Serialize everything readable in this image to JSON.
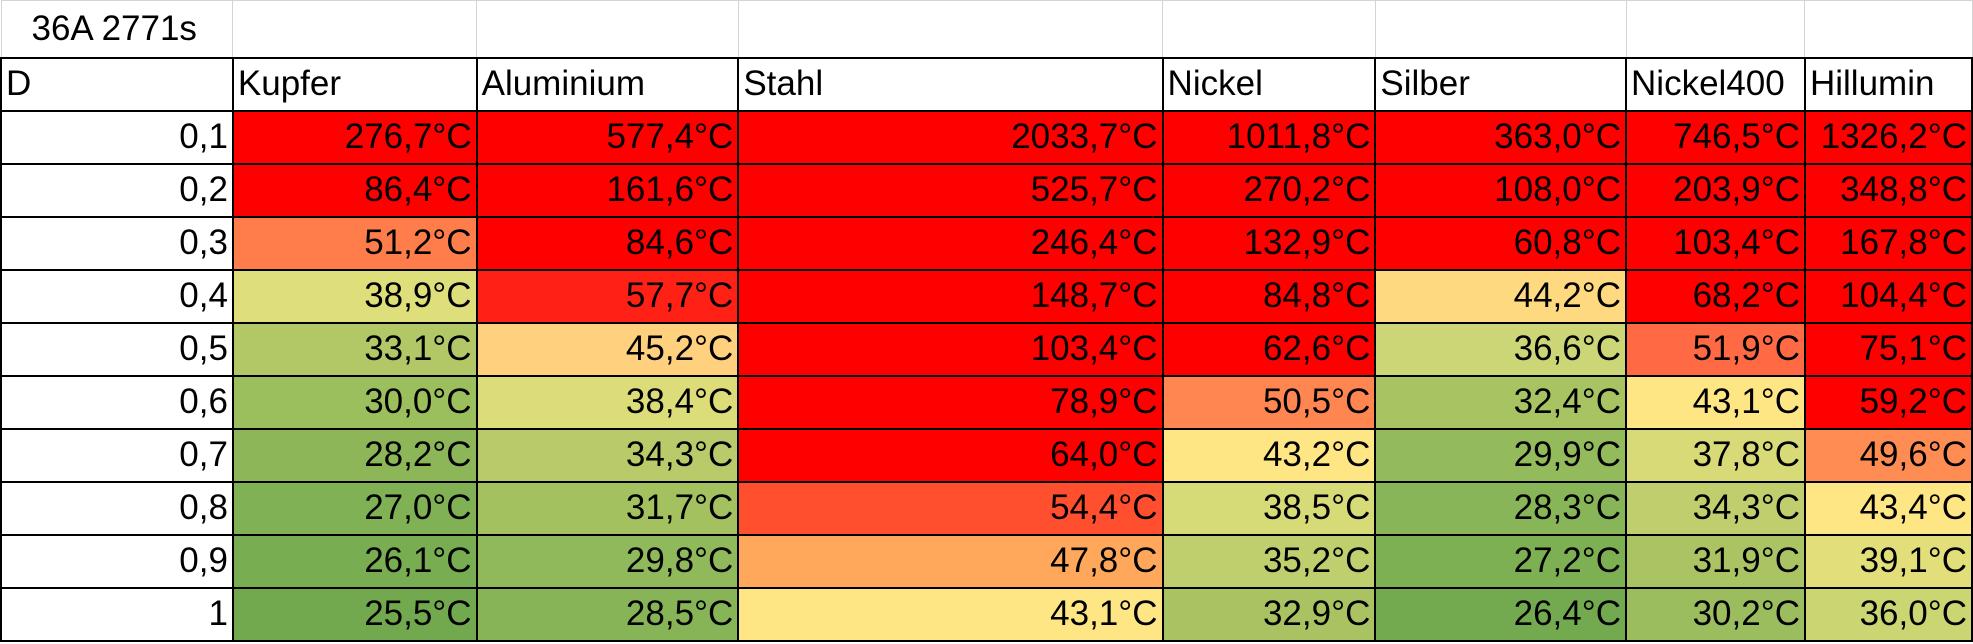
{
  "title": "36A 2771s",
  "headers": [
    "D",
    "Kupfer",
    "Aluminium",
    "Stahl",
    "Nickel",
    "Silber",
    "Nickel400",
    "Hillumin"
  ],
  "rows": [
    {
      "d": "0,1",
      "cells": [
        {
          "text": "276,7°C",
          "color": "#ff0000"
        },
        {
          "text": "577,4°C",
          "color": "#ff0000"
        },
        {
          "text": "2033,7°C",
          "color": "#ff0000"
        },
        {
          "text": "1011,8°C",
          "color": "#ff0000"
        },
        {
          "text": "363,0°C",
          "color": "#ff0000"
        },
        {
          "text": "746,5°C",
          "color": "#ff0000"
        },
        {
          "text": "1326,2°C",
          "color": "#ff0000"
        }
      ]
    },
    {
      "d": "0,2",
      "cells": [
        {
          "text": "86,4°C",
          "color": "#ff0000"
        },
        {
          "text": "161,6°C",
          "color": "#ff0000"
        },
        {
          "text": "525,7°C",
          "color": "#ff0000"
        },
        {
          "text": "270,2°C",
          "color": "#ff0000"
        },
        {
          "text": "108,0°C",
          "color": "#ff0000"
        },
        {
          "text": "203,9°C",
          "color": "#ff0000"
        },
        {
          "text": "348,8°C",
          "color": "#ff0000"
        }
      ]
    },
    {
      "d": "0,3",
      "cells": [
        {
          "text": "51,2°C",
          "color": "#ff7c4b"
        },
        {
          "text": "84,6°C",
          "color": "#ff0000"
        },
        {
          "text": "246,4°C",
          "color": "#ff0000"
        },
        {
          "text": "132,9°C",
          "color": "#ff0000"
        },
        {
          "text": "60,8°C",
          "color": "#ff0000"
        },
        {
          "text": "103,4°C",
          "color": "#ff0000"
        },
        {
          "text": "167,8°C",
          "color": "#ff0000"
        }
      ]
    },
    {
      "d": "0,4",
      "cells": [
        {
          "text": "38,9°C",
          "color": "#dedf7a"
        },
        {
          "text": "57,7°C",
          "color": "#ff2116"
        },
        {
          "text": "148,7°C",
          "color": "#ff0000"
        },
        {
          "text": "84,8°C",
          "color": "#ff0000"
        },
        {
          "text": "44,2°C",
          "color": "#ffd980"
        },
        {
          "text": "68,2°C",
          "color": "#ff0000"
        },
        {
          "text": "104,4°C",
          "color": "#ff0000"
        }
      ]
    },
    {
      "d": "0,5",
      "cells": [
        {
          "text": "33,1°C",
          "color": "#b2c866"
        },
        {
          "text": "45,2°C",
          "color": "#ffd07d"
        },
        {
          "text": "103,4°C",
          "color": "#ff0000"
        },
        {
          "text": "62,6°C",
          "color": "#ff0000"
        },
        {
          "text": "36,6°C",
          "color": "#ccd676"
        },
        {
          "text": "51,9°C",
          "color": "#ff6a45"
        },
        {
          "text": "75,1°C",
          "color": "#ff0000"
        }
      ]
    },
    {
      "d": "0,6",
      "cells": [
        {
          "text": "30,0°C",
          "color": "#9cbf5e"
        },
        {
          "text": "38,4°C",
          "color": "#dcdd79"
        },
        {
          "text": "78,9°C",
          "color": "#ff0000"
        },
        {
          "text": "50,5°C",
          "color": "#ff8650"
        },
        {
          "text": "32,4°C",
          "color": "#a8c362"
        },
        {
          "text": "43,1°C",
          "color": "#ffe685"
        },
        {
          "text": "59,2°C",
          "color": "#ff0000"
        }
      ]
    },
    {
      "d": "0,7",
      "cells": [
        {
          "text": "28,2°C",
          "color": "#8db659"
        },
        {
          "text": "34,3°C",
          "color": "#b8ca69"
        },
        {
          "text": "64,0°C",
          "color": "#ff0000"
        },
        {
          "text": "43,2°C",
          "color": "#ffe685"
        },
        {
          "text": "29,9°C",
          "color": "#93ba5b"
        },
        {
          "text": "37,8°C",
          "color": "#d7da76"
        },
        {
          "text": "49,6°C",
          "color": "#ff8c52"
        }
      ]
    },
    {
      "d": "0,8",
      "cells": [
        {
          "text": "27,0°C",
          "color": "#80b155"
        },
        {
          "text": "31,7°C",
          "color": "#a4c160"
        },
        {
          "text": "54,4°C",
          "color": "#ff4f2e"
        },
        {
          "text": "38,5°C",
          "color": "#d6da77"
        },
        {
          "text": "28,3°C",
          "color": "#88b557"
        },
        {
          "text": "34,3°C",
          "color": "#c1ce6d"
        },
        {
          "text": "43,4°C",
          "color": "#ffe685"
        }
      ]
    },
    {
      "d": "0,9",
      "cells": [
        {
          "text": "26,1°C",
          "color": "#79ad52"
        },
        {
          "text": "29,8°C",
          "color": "#8fb95a"
        },
        {
          "text": "47,8°C",
          "color": "#ffa85c"
        },
        {
          "text": "35,2°C",
          "color": "#c0cf6e"
        },
        {
          "text": "27,2°C",
          "color": "#7db053"
        },
        {
          "text": "31,9°C",
          "color": "#aac464"
        },
        {
          "text": "39,1°C",
          "color": "#e2df7b"
        }
      ]
    },
    {
      "d": "1",
      "cells": [
        {
          "text": "25,5°C",
          "color": "#72a94f"
        },
        {
          "text": "28,5°C",
          "color": "#87b457"
        },
        {
          "text": "43,1°C",
          "color": "#ffe685"
        },
        {
          "text": "32,9°C",
          "color": "#a9c362"
        },
        {
          "text": "26,4°C",
          "color": "#73aa4f"
        },
        {
          "text": "30,2°C",
          "color": "#9cbd5e"
        },
        {
          "text": "36,0°C",
          "color": "#cbd571"
        }
      ]
    }
  ]
}
